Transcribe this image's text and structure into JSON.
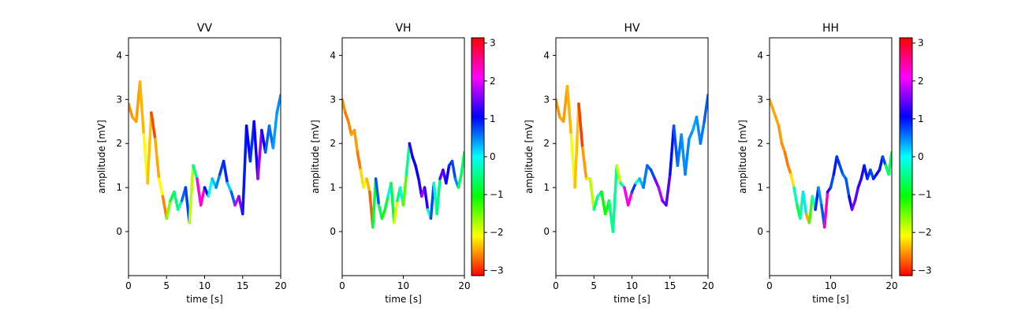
{
  "chart_data": [
    {
      "type": "line",
      "title": "VV",
      "xlabel": "time [s]",
      "ylabel": "amplitude [mV]",
      "xlim": [
        0,
        20
      ],
      "ylim": [
        -1,
        4.4
      ],
      "xticks": [
        "0",
        "5",
        "10",
        "15",
        "20"
      ],
      "yticks": [
        "0",
        "1",
        "2",
        "3",
        "4"
      ],
      "colorbar": false,
      "x": [
        0,
        0.5,
        1,
        1.5,
        2,
        2.5,
        3,
        3.5,
        4,
        4.5,
        5,
        5.5,
        6,
        6.5,
        7,
        7.5,
        8,
        8.5,
        9,
        9.5,
        10,
        10.5,
        11,
        11.5,
        12,
        12.5,
        13,
        13.5,
        14,
        14.5,
        15,
        15.5,
        16,
        16.5,
        17,
        17.5,
        18,
        18.5,
        19,
        19.5,
        20
      ],
      "y": [
        2.9,
        2.6,
        2.5,
        3.4,
        2.2,
        1.1,
        2.7,
        2.1,
        1.2,
        0.8,
        0.3,
        0.7,
        0.9,
        0.5,
        0.7,
        1.0,
        0.2,
        1.5,
        1.2,
        0.6,
        1.0,
        0.8,
        1.2,
        1.0,
        1.3,
        1.6,
        1.1,
        0.9,
        0.6,
        0.8,
        0.4,
        2.4,
        1.6,
        2.5,
        1.2,
        2.3,
        1.8,
        2.4,
        1.9,
        2.7,
        3.1
      ],
      "phase": [
        -2.6,
        -2.5,
        -2.4,
        -2.6,
        -2.2,
        -2.0,
        -2.7,
        -3.0,
        -1.9,
        -2.3,
        -2.9,
        -0.3,
        -1.3,
        0.2,
        -1.0,
        2.2,
        -0.6,
        -3.0,
        2.0,
        2.4,
        2.3,
        -0.2,
        0.1,
        0.4,
        0.6,
        1.0,
        0.8,
        -0.4,
        1.7,
        2.1,
        1.1,
        0.8,
        1.3,
        0.4,
        1.8,
        1.6,
        0.6,
        0.7,
        0.5,
        0.3,
        0.6
      ]
    },
    {
      "type": "line",
      "title": "VH",
      "xlabel": "time [s]",
      "ylabel": "amplitude [mV]",
      "xlim": [
        0,
        20
      ],
      "ylim": [
        -1,
        4.4
      ],
      "xticks": [
        "0",
        "10",
        "20"
      ],
      "yticks": [
        "0",
        "1",
        "2",
        "3",
        "4"
      ],
      "colorbar": true,
      "cbar_ticks": [
        "3",
        "2",
        "1",
        "0",
        "−1",
        "−2",
        "−3"
      ],
      "cbar_range": [
        -3.14,
        3.14
      ],
      "x": [
        0,
        0.5,
        1,
        1.5,
        2,
        2.5,
        3,
        3.5,
        4,
        4.5,
        5,
        5.5,
        6,
        6.5,
        7,
        7.5,
        8,
        8.5,
        9,
        9.5,
        10,
        10.5,
        11,
        11.5,
        12,
        12.5,
        13,
        13.5,
        14,
        14.5,
        15,
        15.5,
        16,
        16.5,
        17,
        17.5,
        18,
        18.5,
        19,
        19.5,
        20
      ],
      "y": [
        3.0,
        2.7,
        2.5,
        2.2,
        2.3,
        1.8,
        1.4,
        1.0,
        1.2,
        0.9,
        0.1,
        1.2,
        0.6,
        0.3,
        0.5,
        0.8,
        1.1,
        0.2,
        0.7,
        1.0,
        0.6,
        1.3,
        2.0,
        1.7,
        1.5,
        1.2,
        0.8,
        1.0,
        0.5,
        0.3,
        1.1,
        0.4,
        1.2,
        1.4,
        1.1,
        1.5,
        1.6,
        1.2,
        1.0,
        1.3,
        1.8
      ],
      "phase": [
        -2.5,
        -2.6,
        -2.7,
        -2.5,
        -2.4,
        -2.6,
        -2.7,
        -1.8,
        -2.2,
        -2.6,
        -2.9,
        1.3,
        0.1,
        -1.5,
        -0.7,
        -0.9,
        1.0,
        -2.6,
        -1.3,
        0.2,
        -0.5,
        -2.3,
        1.4,
        1.0,
        1.2,
        0.9,
        1.5,
        2.1,
        0.3,
        -0.8,
        2.3,
        -2.8,
        1.7,
        1.2,
        1.4,
        0.8,
        0.9,
        0.6,
        0.4,
        -1.8,
        0.5
      ]
    },
    {
      "type": "line",
      "title": "HV",
      "xlabel": "time [s]",
      "ylabel": "amplitude [mV]",
      "xlim": [
        0,
        20
      ],
      "ylim": [
        -1,
        4.4
      ],
      "xticks": [
        "0",
        "5",
        "10",
        "15",
        "20"
      ],
      "yticks": [
        "0",
        "1",
        "2",
        "3",
        "4"
      ],
      "colorbar": false,
      "x": [
        0,
        0.5,
        1,
        1.5,
        2,
        2.5,
        3,
        3.5,
        4,
        4.5,
        5,
        5.5,
        6,
        6.5,
        7,
        7.5,
        8,
        8.5,
        9,
        9.5,
        10,
        10.5,
        11,
        11.5,
        12,
        12.5,
        13,
        13.5,
        14,
        14.5,
        15,
        15.5,
        16,
        16.5,
        17,
        17.5,
        18,
        18.5,
        19,
        19.5,
        20
      ],
      "y": [
        3.0,
        2.6,
        2.5,
        3.3,
        2.2,
        1.0,
        2.9,
        1.9,
        1.2,
        1.2,
        0.5,
        0.8,
        0.9,
        0.4,
        0.7,
        0.0,
        1.5,
        1.1,
        1.0,
        0.6,
        0.9,
        1.1,
        1.2,
        1.0,
        1.5,
        1.4,
        1.2,
        1.0,
        0.7,
        0.6,
        1.3,
        2.4,
        1.5,
        2.2,
        1.3,
        2.1,
        2.3,
        2.6,
        2.0,
        2.5,
        3.1
      ],
      "phase": [
        -2.6,
        -2.5,
        -2.4,
        -2.6,
        -2.2,
        -1.9,
        -2.8,
        -3.0,
        -2.0,
        -2.4,
        -1.2,
        0.1,
        -0.6,
        -1.4,
        -0.8,
        -0.2,
        -0.7,
        -3.0,
        2.3,
        2.1,
        2.4,
        -0.8,
        0.2,
        0.4,
        0.7,
        0.6,
        0.9,
        2.2,
        1.4,
        1.6,
        1.2,
        0.8,
        0.6,
        0.5,
        0.4,
        0.6,
        0.3,
        0.4,
        0.5,
        0.6,
        0.7
      ]
    },
    {
      "type": "line",
      "title": "HH",
      "xlabel": "time [s]",
      "ylabel": "amplitude [mV]",
      "xlim": [
        0,
        20
      ],
      "ylim": [
        -1,
        4.4
      ],
      "xticks": [
        "0",
        "10",
        "20"
      ],
      "yticks": [
        "0",
        "1",
        "2",
        "3",
        "4"
      ],
      "colorbar": true,
      "cbar_ticks": [
        "3",
        "2",
        "1",
        "0",
        "−1",
        "−2",
        "−3"
      ],
      "cbar_range": [
        -3.14,
        3.14
      ],
      "x": [
        0,
        0.5,
        1,
        1.5,
        2,
        2.5,
        3,
        3.5,
        4,
        4.5,
        5,
        5.5,
        6,
        6.5,
        7,
        7.5,
        8,
        8.5,
        9,
        9.5,
        10,
        10.5,
        11,
        11.5,
        12,
        12.5,
        13,
        13.5,
        14,
        14.5,
        15,
        15.5,
        16,
        16.5,
        17,
        17.5,
        18,
        18.5,
        19,
        19.5,
        20
      ],
      "y": [
        3.0,
        2.8,
        2.6,
        2.4,
        2.0,
        1.8,
        1.5,
        1.3,
        1.0,
        0.6,
        0.3,
        0.9,
        0.4,
        0.2,
        0.8,
        0.5,
        1.0,
        0.6,
        0.1,
        0.9,
        1.0,
        1.3,
        1.7,
        1.5,
        1.3,
        1.2,
        0.8,
        0.5,
        0.7,
        1.0,
        1.2,
        1.5,
        1.2,
        1.4,
        1.2,
        1.3,
        1.4,
        1.7,
        1.5,
        1.3,
        1.8
      ],
      "phase": [
        -2.5,
        -2.4,
        -2.5,
        -2.4,
        -2.6,
        -2.5,
        -2.8,
        -2.4,
        -2.0,
        1.4,
        -2.9,
        2.1,
        -1.9,
        -3.0,
        0.4,
        -0.5,
        2.3,
        -1.4,
        2.8,
        2.0,
        0.5,
        1.0,
        0.9,
        0.8,
        0.7,
        0.4,
        1.0,
        1.3,
        1.8,
        1.1,
        1.4,
        1.0,
        0.9,
        0.8,
        0.7,
        1.2,
        1.0,
        0.9,
        0.6,
        -1.8,
        0.5
      ]
    }
  ]
}
